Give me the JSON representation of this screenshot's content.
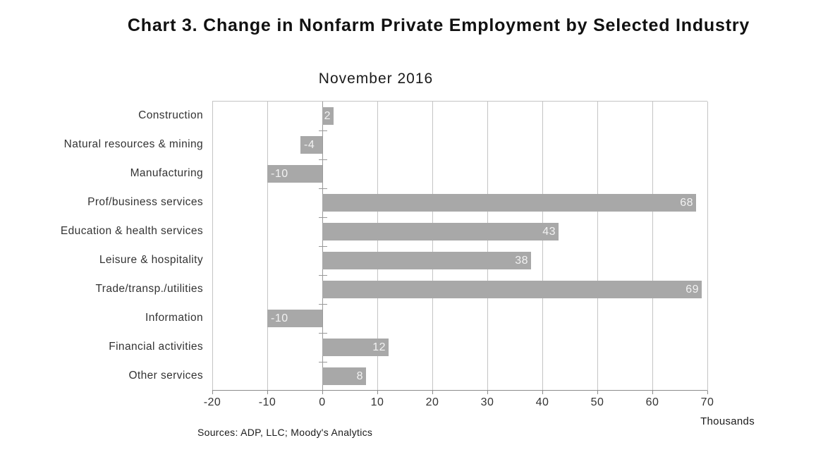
{
  "chart_data": {
    "type": "bar",
    "orientation": "horizontal",
    "title": "Chart 3. Change in Nonfarm Private Employment by Selected Industry",
    "subtitle": "November 2016",
    "categories": [
      "Construction",
      "Natural resources & mining",
      "Manufacturing",
      "Prof/business services",
      "Education & health services",
      "Leisure & hospitality",
      "Trade/transp./utilities",
      "Information",
      "Financial activities",
      "Other services"
    ],
    "values": [
      2,
      -4,
      -10,
      68,
      43,
      38,
      69,
      -10,
      12,
      8
    ],
    "data_labels": [
      "2",
      "-4",
      "-10",
      "68",
      "43",
      "38",
      "69",
      "-10",
      "12",
      "8"
    ],
    "xlabel": "Thousands",
    "ylabel": "",
    "xlim": [
      -20,
      70
    ],
    "x_tick_step": 10,
    "x_ticks": [
      -20,
      -10,
      0,
      10,
      20,
      30,
      40,
      50,
      60,
      70
    ],
    "x_tick_labels": [
      "-20",
      "-10",
      "0",
      "10",
      "20",
      "30",
      "40",
      "50",
      "60",
      "70"
    ],
    "grid": true,
    "legend": false,
    "bar_color": "#a8a8a8",
    "data_label_color": "#f2f2f2",
    "gridline_color": "#c4c4c4",
    "source_note": "Sources: ADP, LLC; Moody's Analytics"
  }
}
